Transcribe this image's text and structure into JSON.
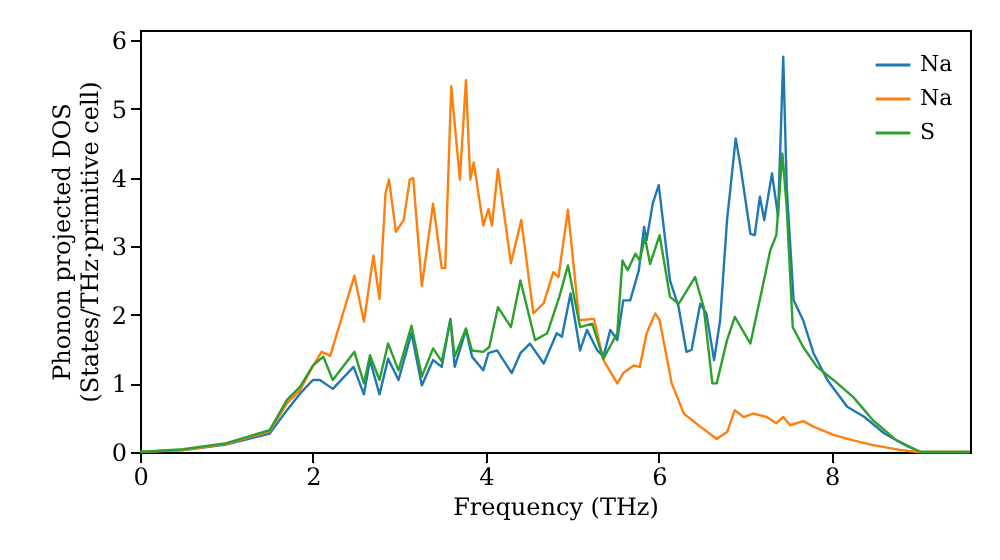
{
  "chart_data": {
    "type": "line",
    "xlabel": "Frequency (THz)",
    "ylabel": "Phonon projected DOS\n(States/THz·primitive cell)",
    "xlim": [
      0,
      9.6
    ],
    "ylim": [
      0,
      6.15
    ],
    "xticks": [
      0,
      2,
      4,
      6,
      8
    ],
    "yticks": [
      0,
      1,
      2,
      3,
      4,
      5,
      6
    ],
    "grid": false,
    "legend": "top right",
    "line_style": "solid",
    "marker": "none",
    "series": [
      {
        "name": "Na",
        "color": "#1f77b4",
        "x": [
          0,
          0.5,
          1.0,
          1.5,
          1.7,
          1.85,
          2.0,
          2.08,
          2.23,
          2.47,
          2.59,
          2.66,
          2.77,
          2.87,
          2.99,
          3.14,
          3.26,
          3.39,
          3.49,
          3.59,
          3.64,
          3.77,
          3.84,
          3.97,
          4.03,
          4.13,
          4.3,
          4.4,
          4.51,
          4.67,
          4.82,
          4.88,
          4.98,
          5.09,
          5.17,
          5.29,
          5.36,
          5.44,
          5.52,
          5.59,
          5.67,
          5.77,
          5.83,
          5.86,
          5.93,
          6.0,
          6.13,
          6.23,
          6.32,
          6.38,
          6.48,
          6.55,
          6.64,
          6.71,
          6.79,
          6.89,
          6.94,
          7.06,
          7.11,
          7.17,
          7.22,
          7.31,
          7.38,
          7.44,
          7.48,
          7.56,
          7.67,
          7.79,
          7.95,
          8.18,
          8.38,
          8.61,
          8.88,
          9.03,
          9.6
        ],
        "values": [
          0,
          0.03,
          0.11,
          0.27,
          0.61,
          0.85,
          1.05,
          1.05,
          0.92,
          1.24,
          0.84,
          1.34,
          0.84,
          1.36,
          1.05,
          1.73,
          0.97,
          1.34,
          1.24,
          1.94,
          1.24,
          1.78,
          1.39,
          1.19,
          1.44,
          1.48,
          1.15,
          1.44,
          1.58,
          1.29,
          1.73,
          1.68,
          2.31,
          1.48,
          1.78,
          1.48,
          1.39,
          1.78,
          1.63,
          2.21,
          2.21,
          2.65,
          3.28,
          3.09,
          3.62,
          3.89,
          2.5,
          2.11,
          1.46,
          1.49,
          2.16,
          2.02,
          1.34,
          1.92,
          3.38,
          4.57,
          4.21,
          3.18,
          3.16,
          3.72,
          3.38,
          4.06,
          3.43,
          5.76,
          3.86,
          2.21,
          1.92,
          1.44,
          1.05,
          0.66,
          0.51,
          0.27,
          0.08,
          0,
          0
        ]
      },
      {
        "name": "Na",
        "color": "#ff7f0e",
        "x": [
          0,
          0.5,
          1.0,
          1.5,
          1.7,
          1.85,
          2.0,
          2.1,
          2.2,
          2.48,
          2.59,
          2.7,
          2.77,
          2.84,
          2.88,
          2.96,
          3.05,
          3.12,
          3.16,
          3.26,
          3.39,
          3.49,
          3.53,
          3.6,
          3.7,
          3.77,
          3.82,
          3.86,
          3.97,
          4.03,
          4.07,
          4.14,
          4.29,
          4.41,
          4.55,
          4.67,
          4.78,
          4.84,
          4.95,
          5.08,
          5.25,
          5.36,
          5.52,
          5.59,
          5.71,
          5.78,
          5.86,
          5.96,
          6.01,
          6.15,
          6.29,
          6.48,
          6.67,
          6.79,
          6.88,
          6.98,
          7.09,
          7.25,
          7.36,
          7.44,
          7.52,
          7.67,
          7.79,
          8.02,
          8.25,
          8.48,
          8.79,
          9.0,
          9.6
        ],
        "values": [
          0,
          0.03,
          0.12,
          0.3,
          0.71,
          0.9,
          1.25,
          1.46,
          1.4,
          2.57,
          1.9,
          2.86,
          2.23,
          3.77,
          3.97,
          3.21,
          3.38,
          3.97,
          3.99,
          2.42,
          3.62,
          2.68,
          2.68,
          5.33,
          3.97,
          5.42,
          3.97,
          4.22,
          3.3,
          3.54,
          3.3,
          4.12,
          2.75,
          3.38,
          2.02,
          2.17,
          2.62,
          2.55,
          3.53,
          1.92,
          1.94,
          1.34,
          1.0,
          1.15,
          1.26,
          1.24,
          1.73,
          2.02,
          1.92,
          1.0,
          0.56,
          0.37,
          0.19,
          0.29,
          0.61,
          0.51,
          0.56,
          0.51,
          0.42,
          0.51,
          0.39,
          0.45,
          0.37,
          0.25,
          0.17,
          0.1,
          0.03,
          0,
          0
        ]
      },
      {
        "name": "S",
        "color": "#2ca02c",
        "x": [
          0,
          0.5,
          1.0,
          1.5,
          1.7,
          1.85,
          2.0,
          2.12,
          2.23,
          2.48,
          2.59,
          2.66,
          2.77,
          2.87,
          2.99,
          3.14,
          3.26,
          3.39,
          3.49,
          3.59,
          3.64,
          3.77,
          3.84,
          3.97,
          4.04,
          4.14,
          4.29,
          4.4,
          4.57,
          4.71,
          4.85,
          4.95,
          5.09,
          5.23,
          5.36,
          5.52,
          5.58,
          5.64,
          5.73,
          5.78,
          5.84,
          5.9,
          6.01,
          6.13,
          6.23,
          6.42,
          6.52,
          6.62,
          6.67,
          6.79,
          6.88,
          7.06,
          7.2,
          7.29,
          7.36,
          7.43,
          7.48,
          7.55,
          7.67,
          7.83,
          8.02,
          8.25,
          8.48,
          8.75,
          9.03,
          9.6
        ],
        "values": [
          0,
          0.04,
          0.13,
          0.32,
          0.76,
          0.95,
          1.26,
          1.39,
          1.05,
          1.46,
          1.0,
          1.41,
          1.05,
          1.58,
          1.19,
          1.84,
          1.1,
          1.51,
          1.32,
          1.92,
          1.39,
          1.8,
          1.48,
          1.46,
          1.53,
          2.11,
          1.82,
          2.5,
          1.63,
          1.73,
          2.26,
          2.72,
          1.82,
          1.87,
          1.36,
          1.73,
          2.79,
          2.65,
          2.89,
          2.79,
          3.13,
          2.74,
          3.16,
          2.26,
          2.16,
          2.55,
          2.11,
          1.0,
          1.0,
          1.63,
          1.97,
          1.58,
          2.4,
          2.94,
          3.16,
          4.35,
          3.57,
          1.82,
          1.53,
          1.24,
          1.05,
          0.8,
          0.46,
          0.17,
          0,
          0
        ]
      }
    ]
  }
}
